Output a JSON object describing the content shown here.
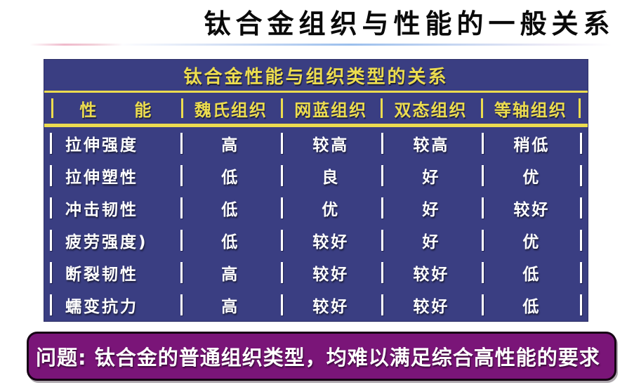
{
  "slide": {
    "title": "钛合金组织与性能的一般关系"
  },
  "table": {
    "title": "钛合金性能与组织类型的关系",
    "columns": [
      "性　　能",
      "魏氏组织",
      "网蓝组织",
      "双态组织",
      "等轴组织"
    ],
    "rows": [
      {
        "property": "拉伸强度",
        "values": [
          "高",
          "较高",
          "较高",
          "稍低"
        ]
      },
      {
        "property": "拉伸塑性",
        "values": [
          "低",
          "良",
          "好",
          "优"
        ]
      },
      {
        "property": "冲击韧性",
        "values": [
          "低",
          "优",
          "好",
          "较好"
        ]
      },
      {
        "property": "疲劳强度)",
        "values": [
          "低",
          "较好",
          "好",
          "优"
        ]
      },
      {
        "property": "断裂韧性",
        "values": [
          "高",
          "较好",
          "较好",
          "低"
        ]
      },
      {
        "property": "蠕变抗力",
        "values": [
          "高",
          "较好",
          "较好",
          "低"
        ]
      }
    ]
  },
  "banner": {
    "text": "问题: 钛合金的普通组织类型，均难以满足综合高性能的要求"
  },
  "colors": {
    "table_background": "#3A3E82",
    "accent_yellow": "#ECDC4F",
    "banner_background": "#7A1578",
    "banner_border": "#160314",
    "title_text": "#0A0A0A",
    "row_text": "#FFFFFF"
  }
}
